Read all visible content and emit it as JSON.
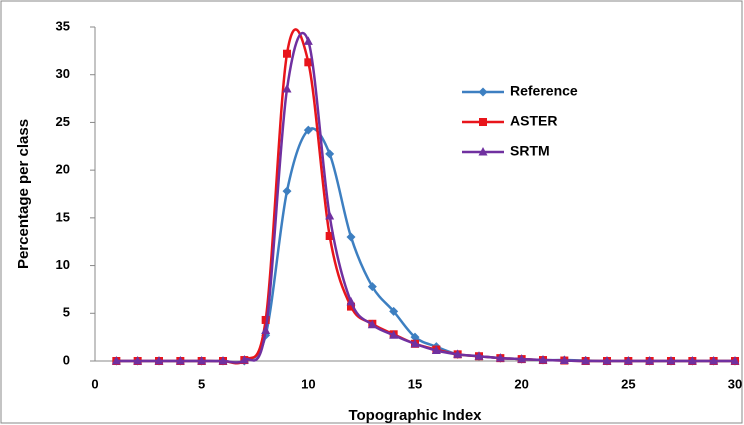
{
  "chart_data": {
    "type": "line",
    "x_label": "Topographic Index",
    "y_label": "Percentage per class",
    "x": [
      1,
      2,
      3,
      4,
      5,
      6,
      7,
      8,
      9,
      10,
      11,
      12,
      13,
      14,
      15,
      16,
      17,
      18,
      19,
      20,
      21,
      22,
      23,
      24,
      25,
      26,
      27,
      28,
      29,
      30
    ],
    "series": [
      {
        "name": "Reference",
        "color": "#3d7fc1",
        "marker": "diamond",
        "values": [
          0,
          0,
          0,
          0,
          0,
          0,
          0,
          2.7,
          17.8,
          24.2,
          21.7,
          13,
          7.8,
          5.2,
          2.5,
          1.5,
          0.7,
          0.5,
          0.3,
          0.2,
          0.1,
          0.1,
          0.05,
          0,
          0,
          0,
          0,
          0,
          0,
          0
        ]
      },
      {
        "name": "ASTER",
        "color": "#e8151b",
        "marker": "square",
        "values": [
          0,
          0,
          0,
          0,
          0,
          0,
          0.1,
          4.3,
          32.2,
          31.3,
          13.1,
          5.7,
          3.9,
          2.8,
          1.8,
          1.2,
          0.7,
          0.5,
          0.3,
          0.2,
          0.1,
          0.05,
          0,
          0,
          0,
          0,
          0,
          0,
          0,
          0
        ]
      },
      {
        "name": "SRTM",
        "color": "#7030a0",
        "marker": "triangle",
        "values": [
          0,
          0,
          0,
          0,
          0,
          0,
          0.1,
          3.2,
          28.5,
          33.5,
          15.2,
          6.2,
          3.8,
          2.7,
          1.8,
          1.1,
          0.7,
          0.5,
          0.3,
          0.2,
          0.1,
          0.05,
          0,
          0,
          0,
          0,
          0,
          0,
          0,
          0
        ]
      }
    ],
    "xlim": [
      0,
      30
    ],
    "xticks": [
      0,
      5,
      10,
      15,
      20,
      25,
      30
    ],
    "ylim": [
      0,
      35
    ],
    "yticks": [
      0,
      5,
      10,
      15,
      20,
      25,
      30,
      35
    ],
    "grid": false,
    "legend": "upper right",
    "smooth": true
  }
}
